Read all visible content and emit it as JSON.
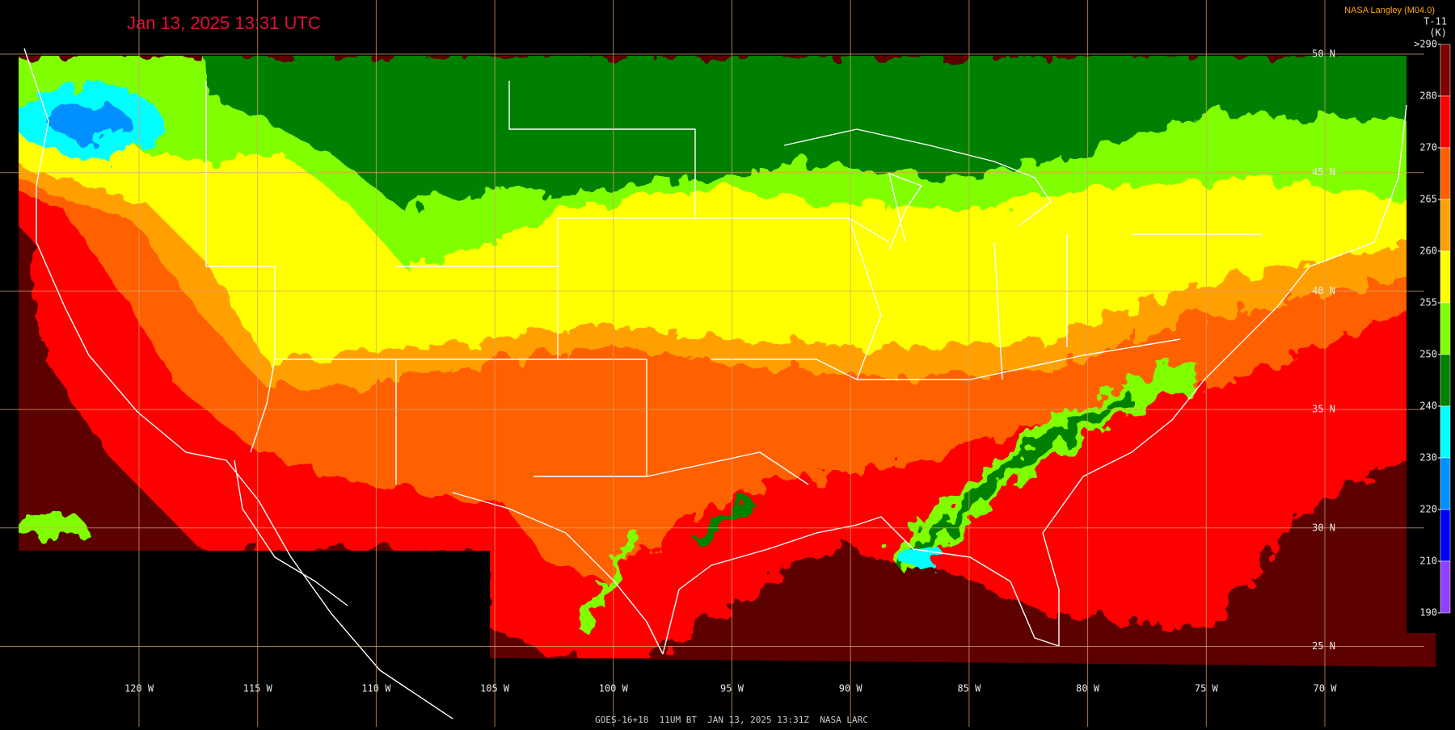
{
  "header": {
    "title": "Jan 13, 2025 13:31 UTC",
    "credit": "NASA Langley (M04.0)"
  },
  "legend": {
    "title": "T-11",
    "unit": "(K)",
    "ticks": [
      {
        "value": 290,
        "label": ">290"
      },
      280,
      270,
      265,
      260,
      255,
      250,
      240,
      230,
      220,
      210,
      190
    ],
    "colors": [
      "#800000",
      "#ff0000",
      "#ff6000",
      "#ffa000",
      "#ffff00",
      "#80ff00",
      "#008000",
      "#00ffff",
      "#0090ff",
      "#0000ff",
      "#9040ff"
    ]
  },
  "grid": {
    "latitudes": [
      "50 N",
      "45 N",
      "40 N",
      "35 N",
      "30 N",
      "25 N"
    ],
    "longitudes": [
      "120 W",
      "115 W",
      "110 W",
      "105 W",
      "100 W",
      "95 W",
      "90 W",
      "85 W",
      "80 W",
      "75 W",
      "70 W"
    ]
  },
  "footer": "GOES-16+18  11UM BT  JAN 13, 2025 13:31Z  NASA LARC"
}
